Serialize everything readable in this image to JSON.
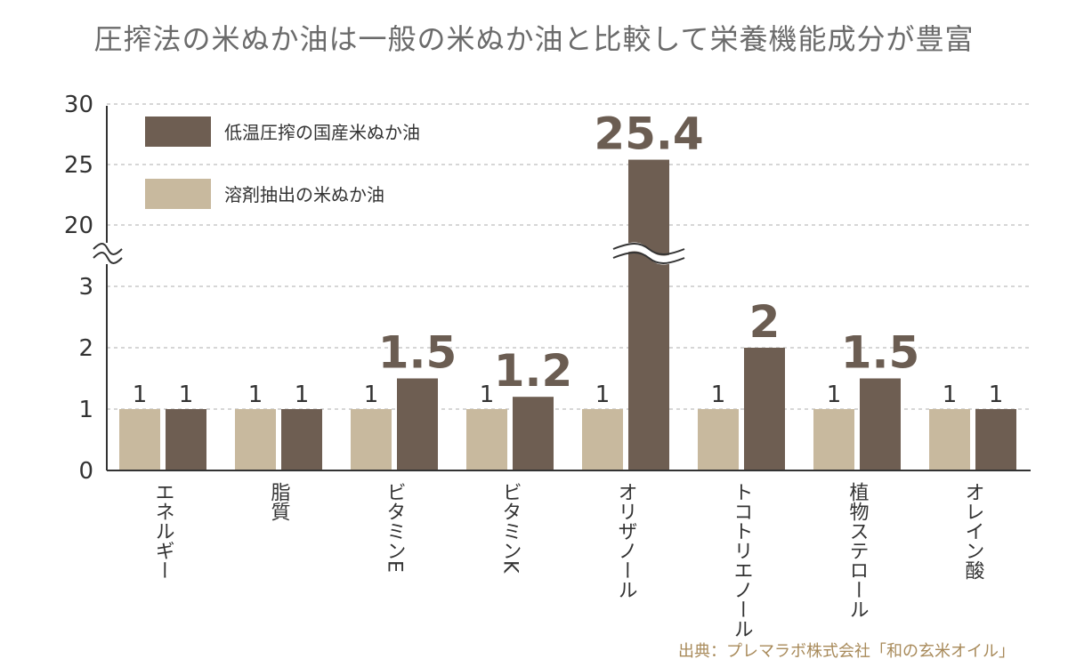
{
  "chart_data": {
    "type": "bar",
    "title": "圧搾法の米ぬか油は一般の米ぬか油と比較して栄養機能成分が豊富",
    "categories": [
      "エネルギー",
      "脂質",
      "ビタミンE",
      "ビタミンK",
      "オリザノール",
      "トコトリエノール",
      "植物ステロール",
      "オレイン酸"
    ],
    "series": [
      {
        "name": "溶剤抽出の米ぬか油",
        "color": "#c8b99e",
        "values": [
          1,
          1,
          1,
          1,
          1,
          1,
          1,
          1
        ],
        "labels": [
          "1",
          "1",
          "1",
          "1",
          "1",
          "1",
          "1",
          "1"
        ]
      },
      {
        "name": "低温圧搾の国産米ぬか油",
        "color": "#6e5e52",
        "values": [
          1,
          1,
          1.5,
          1.2,
          25.4,
          2,
          1.5,
          1
        ],
        "labels": [
          "1",
          "1",
          "1.5",
          "1.2",
          "25.4",
          "2",
          "1.5",
          "1"
        ]
      }
    ],
    "y_ticks": [
      "0",
      "1",
      "2",
      "3",
      "20",
      "25",
      "30"
    ],
    "axis_break": {
      "lower_range": [
        0,
        3
      ],
      "upper_range": [
        20,
        30
      ]
    },
    "ylim": [
      0,
      30
    ],
    "grid": true,
    "legend_position": "top-left"
  },
  "source": "出典：プレマラボ株式会社「和の玄米オイル」"
}
